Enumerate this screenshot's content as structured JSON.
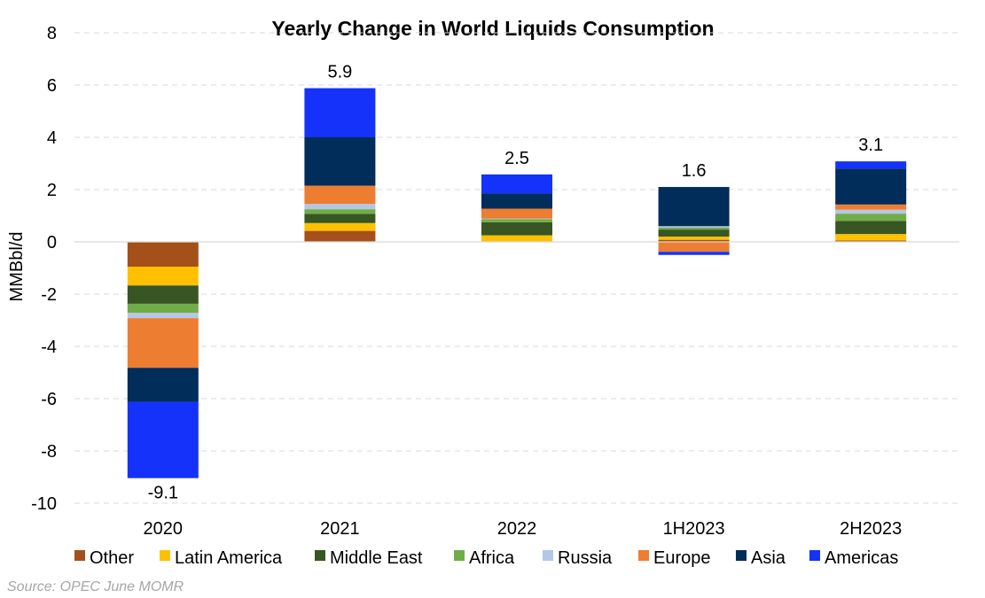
{
  "chart_data": {
    "type": "bar",
    "stacked": true,
    "title": "Yearly Change in World Liquids Consumption",
    "xlabel": "",
    "ylabel": "MMBbl/d",
    "ylim": [
      -10,
      8
    ],
    "yticks": [
      8,
      6,
      4,
      2,
      0,
      -2,
      -4,
      -6,
      -8,
      -10
    ],
    "grid": true,
    "legend_position": "bottom",
    "categories": [
      "2020",
      "2021",
      "2022",
      "1H2023",
      "2H2023"
    ],
    "totals": [
      -9.1,
      5.9,
      2.5,
      1.6,
      3.1
    ],
    "total_labels": [
      "-9.1",
      "5.9",
      "2.5",
      "1.6",
      "3.1"
    ],
    "series": [
      {
        "name": "Other",
        "color": "#A5501A",
        "values": [
          -0.95,
          0.42,
          0.0,
          0.08,
          0.05
        ]
      },
      {
        "name": "Latin America",
        "color": "#FFC000",
        "values": [
          -0.72,
          0.3,
          0.25,
          0.12,
          0.25
        ]
      },
      {
        "name": "Middle East",
        "color": "#375623",
        "values": [
          -0.7,
          0.35,
          0.5,
          0.27,
          0.5
        ]
      },
      {
        "name": "Africa",
        "color": "#70AD47",
        "values": [
          -0.35,
          0.18,
          0.12,
          0.08,
          0.28
        ]
      },
      {
        "name": "Russia",
        "color": "#B4C7E7",
        "values": [
          -0.2,
          0.2,
          0.02,
          0.05,
          0.15
        ]
      },
      {
        "name": "Europe",
        "color": "#ED7D31",
        "values": [
          -1.9,
          0.7,
          0.38,
          -0.38,
          0.2
        ]
      },
      {
        "name": "Asia",
        "color": "#002D5A",
        "values": [
          -1.3,
          1.85,
          0.58,
          1.5,
          1.37
        ]
      },
      {
        "name": "Americas",
        "color": "#1432FA",
        "values": [
          -2.92,
          1.88,
          0.73,
          -0.12,
          0.28
        ]
      }
    ]
  },
  "source": "Source: OPEC June MOMR"
}
